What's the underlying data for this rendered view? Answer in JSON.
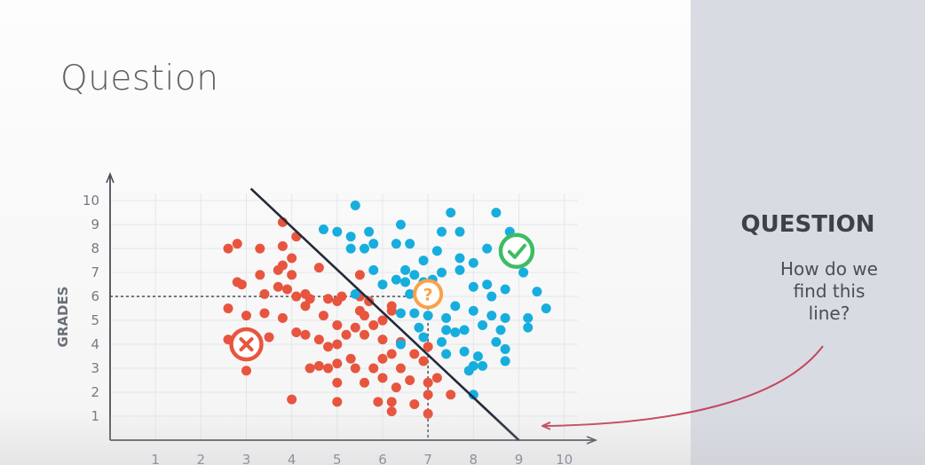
{
  "slide": {
    "title": "Question"
  },
  "sidebar": {
    "heading": "QUESTION",
    "body_lines": [
      "How do we",
      "find this",
      "line?"
    ]
  },
  "chart_data": {
    "type": "scatter",
    "ylabel": "GRADES",
    "xlim": [
      0,
      10.3
    ],
    "ylim": [
      0,
      10.3
    ],
    "x_ticks": [
      "1",
      "2",
      "3",
      "4",
      "5",
      "6",
      "7",
      "8",
      "9",
      "10"
    ],
    "y_ticks": [
      "1",
      "2",
      "3",
      "4",
      "5",
      "6",
      "7",
      "8",
      "9",
      "10"
    ],
    "grid": true,
    "colors": {
      "red": "#e8553f",
      "blue": "#17aede",
      "line": "#252a3a",
      "orange": "#f9a24a",
      "green": "#3dbd63",
      "arrow": "#c4465e",
      "gridline": "#e3e6ea",
      "axis": "#4a4f56"
    },
    "series": [
      {
        "color": "red",
        "points": [
          [
            2.6,
            8.0
          ],
          [
            2.8,
            8.2
          ],
          [
            3.3,
            8.0
          ],
          [
            3.8,
            8.1
          ],
          [
            3.8,
            9.1
          ],
          [
            4.1,
            8.5
          ],
          [
            2.8,
            6.6
          ],
          [
            2.9,
            6.5
          ],
          [
            3.3,
            6.9
          ],
          [
            3.7,
            7.1
          ],
          [
            3.8,
            7.3
          ],
          [
            4.0,
            7.6
          ],
          [
            4.0,
            6.9
          ],
          [
            3.4,
            6.1
          ],
          [
            3.7,
            6.4
          ],
          [
            3.9,
            6.3
          ],
          [
            4.1,
            6.0
          ],
          [
            4.3,
            6.1
          ],
          [
            4.6,
            7.2
          ],
          [
            4.4,
            5.9
          ],
          [
            4.8,
            5.9
          ],
          [
            5.0,
            5.8
          ],
          [
            5.1,
            6.0
          ],
          [
            5.5,
            6.0
          ],
          [
            5.5,
            6.9
          ],
          [
            5.7,
            5.8
          ],
          [
            2.6,
            5.5
          ],
          [
            3.0,
            5.2
          ],
          [
            3.4,
            5.3
          ],
          [
            3.8,
            5.1
          ],
          [
            4.3,
            5.6
          ],
          [
            4.7,
            5.2
          ],
          [
            5.0,
            4.8
          ],
          [
            5.4,
            4.7
          ],
          [
            5.6,
            5.2
          ],
          [
            5.8,
            4.8
          ],
          [
            6.0,
            5.0
          ],
          [
            2.6,
            4.2
          ],
          [
            3.5,
            4.3
          ],
          [
            4.1,
            4.5
          ],
          [
            4.3,
            4.4
          ],
          [
            4.6,
            4.2
          ],
          [
            4.8,
            3.9
          ],
          [
            5.0,
            4.0
          ],
          [
            5.2,
            4.4
          ],
          [
            5.6,
            4.4
          ],
          [
            6.0,
            4.2
          ],
          [
            6.4,
            4.1
          ],
          [
            6.2,
            5.6
          ],
          [
            4.6,
            3.1
          ],
          [
            4.8,
            3.0
          ],
          [
            5.0,
            3.2
          ],
          [
            5.3,
            3.4
          ],
          [
            5.4,
            3.0
          ],
          [
            5.8,
            3.0
          ],
          [
            6.0,
            3.4
          ],
          [
            6.2,
            3.6
          ],
          [
            6.4,
            3.0
          ],
          [
            6.7,
            3.6
          ],
          [
            6.9,
            3.3
          ],
          [
            7.0,
            3.9
          ],
          [
            4.4,
            3.0
          ],
          [
            5.0,
            2.4
          ],
          [
            5.6,
            2.4
          ],
          [
            6.0,
            2.6
          ],
          [
            6.3,
            2.2
          ],
          [
            6.6,
            2.5
          ],
          [
            7.0,
            2.4
          ],
          [
            7.2,
            2.6
          ],
          [
            4.0,
            1.7
          ],
          [
            5.0,
            1.6
          ],
          [
            5.9,
            1.6
          ],
          [
            6.2,
            1.6
          ],
          [
            6.2,
            1.2
          ],
          [
            6.7,
            1.5
          ],
          [
            7.0,
            1.9
          ],
          [
            7.0,
            1.1
          ],
          [
            7.5,
            1.9
          ],
          [
            3.0,
            2.9
          ],
          [
            6.2,
            5.4
          ],
          [
            5.5,
            5.4
          ]
        ]
      },
      {
        "color": "blue",
        "points": [
          [
            5.4,
            9.8
          ],
          [
            6.4,
            9.0
          ],
          [
            7.5,
            9.5
          ],
          [
            8.5,
            9.5
          ],
          [
            8.8,
            8.7
          ],
          [
            4.7,
            8.8
          ],
          [
            5.0,
            8.7
          ],
          [
            5.3,
            8.5
          ],
          [
            5.7,
            8.7
          ],
          [
            6.3,
            8.2
          ],
          [
            6.6,
            8.2
          ],
          [
            7.3,
            8.7
          ],
          [
            7.7,
            8.7
          ],
          [
            5.3,
            8.0
          ],
          [
            5.6,
            8.0
          ],
          [
            5.8,
            8.2
          ],
          [
            6.9,
            7.5
          ],
          [
            7.2,
            7.9
          ],
          [
            7.7,
            7.6
          ],
          [
            8.0,
            7.4
          ],
          [
            8.3,
            8.0
          ],
          [
            5.8,
            7.1
          ],
          [
            6.0,
            6.5
          ],
          [
            6.3,
            6.7
          ],
          [
            6.5,
            7.1
          ],
          [
            6.7,
            6.9
          ],
          [
            6.9,
            6.6
          ],
          [
            7.1,
            6.7
          ],
          [
            7.3,
            7.0
          ],
          [
            7.7,
            7.1
          ],
          [
            8.0,
            6.4
          ],
          [
            8.3,
            6.5
          ],
          [
            8.4,
            6.0
          ],
          [
            8.7,
            6.3
          ],
          [
            9.1,
            7.0
          ],
          [
            9.4,
            6.2
          ],
          [
            9.6,
            5.5
          ],
          [
            6.6,
            6.1
          ],
          [
            6.5,
            6.6
          ],
          [
            5.4,
            6.1
          ],
          [
            6.4,
            5.3
          ],
          [
            6.7,
            5.3
          ],
          [
            7.0,
            5.2
          ],
          [
            7.4,
            5.1
          ],
          [
            7.6,
            5.6
          ],
          [
            8.0,
            5.4
          ],
          [
            8.4,
            5.2
          ],
          [
            8.7,
            5.1
          ],
          [
            9.2,
            5.1
          ],
          [
            6.8,
            4.7
          ],
          [
            7.4,
            4.6
          ],
          [
            7.6,
            4.5
          ],
          [
            7.8,
            4.6
          ],
          [
            8.2,
            4.8
          ],
          [
            8.6,
            4.6
          ],
          [
            9.2,
            4.7
          ],
          [
            6.4,
            4.0
          ],
          [
            6.9,
            4.3
          ],
          [
            7.3,
            4.1
          ],
          [
            7.4,
            3.6
          ],
          [
            7.8,
            3.7
          ],
          [
            8.1,
            3.5
          ],
          [
            8.5,
            4.1
          ],
          [
            8.7,
            3.8
          ],
          [
            8.0,
            3.1
          ],
          [
            8.2,
            3.1
          ],
          [
            8.7,
            3.3
          ],
          [
            7.9,
            2.9
          ],
          [
            8.0,
            1.9
          ]
        ]
      }
    ],
    "separator_line": {
      "from": [
        3.1,
        10.5
      ],
      "to": [
        9.0,
        0
      ]
    },
    "markers": [
      {
        "icon": "cross-icon",
        "color": "red",
        "at": [
          3.0,
          4.0
        ]
      },
      {
        "icon": "check-icon",
        "color": "green",
        "at": [
          8.95,
          7.9
        ]
      },
      {
        "icon": "question-mark-icon",
        "color": "orange",
        "label": "?",
        "at": [
          7.0,
          6.1
        ]
      }
    ],
    "guide_point": [
      7.0,
      6.0
    ]
  }
}
